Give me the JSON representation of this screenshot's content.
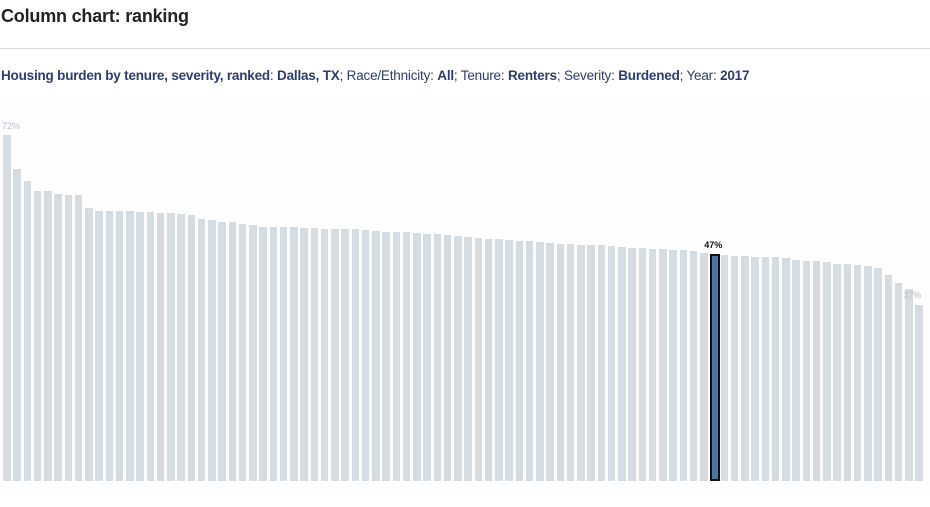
{
  "header": {
    "title": "Column chart: ranking"
  },
  "subtitle": {
    "prefix": "Housing burden by tenure, severity, ranked",
    "place_label": ": ",
    "place": "Dallas, TX",
    "race_label": "; Race/Ethnicity: ",
    "race": "All",
    "tenure_label": "; Tenure: ",
    "tenure": "Renters",
    "severity_label": "; Severity: ",
    "severity": "Burdened",
    "year_label": "; Year: ",
    "year": "2017"
  },
  "colors": {
    "bar": "#d5dde3",
    "highlight": "#4f73a3",
    "highlight_border": "#111111",
    "title": "#2d3e6e"
  },
  "chart_data": {
    "type": "bar",
    "title": "Housing burden by tenure, severity, ranked: Dallas, TX; Race/Ethnicity: All; Tenure: Renters; Severity: Burdened; Year: 2017",
    "xlabel": "",
    "ylabel": "",
    "ylim": [
      0,
      72
    ],
    "grid": false,
    "highlight_index": 69,
    "highlight_label": "47%",
    "max_label": "72%",
    "min_label": "37%",
    "values": [
      72,
      65,
      62.5,
      60.5,
      60.5,
      59.8,
      59.5,
      59.5,
      56.8,
      56.2,
      56.2,
      56.2,
      56.2,
      56,
      56,
      55.8,
      55.8,
      55.6,
      55.4,
      54.6,
      54.3,
      54,
      53.9,
      53.5,
      53.4,
      53,
      52.9,
      52.9,
      52.9,
      52.7,
      52.7,
      52.6,
      52.5,
      52.5,
      52.5,
      52.3,
      52,
      51.9,
      51.9,
      51.8,
      51.6,
      51.4,
      51.4,
      51.2,
      51,
      50.9,
      50.6,
      50.5,
      50.5,
      50.3,
      50.1,
      50.1,
      49.7,
      49.5,
      49.4,
      49.3,
      49.2,
      49.1,
      49.1,
      48.9,
      48.7,
      48.6,
      48.5,
      48.4,
      48.3,
      48.2,
      48.1,
      47.9,
      47.6,
      47.2,
      47,
      46.9,
      46.9,
      46.7,
      46.6,
      46.6,
      46.4,
      46.1,
      45.9,
      45.9,
      45.6,
      45.3,
      45.3,
      44.9,
      44.8,
      44.3,
      43,
      41.3,
      40,
      36.7
    ]
  }
}
